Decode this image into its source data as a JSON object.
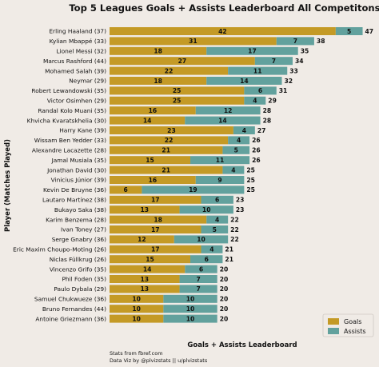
{
  "chart_data": {
    "type": "bar",
    "orientation": "horizontal",
    "stacked": true,
    "title": "Top 5 Leagues Goals + Assists Leaderboard All Competitons 22/23",
    "xlabel": "Goals + Assists Leaderboard",
    "ylabel": "Player (Matches Played)",
    "categories": [
      "Erling Haaland (37)",
      "Kylian Mbappé (33)",
      "Lionel Messi (32)",
      "Marcus Rashford (44)",
      "Mohamed Salah (39)",
      "Neymar (29)",
      "Robert Lewandowski (35)",
      "Victor Osimhen (29)",
      "Randal Kolo Muani (35)",
      "Khvicha Kvaratskhelia (30)",
      "Harry Kane (39)",
      "Wissam Ben Yedder (33)",
      "Alexandre Lacazette (28)",
      "Jamal Musiala (35)",
      "Jonathan David (30)",
      "Vinicius Júnior (39)",
      "Kevin De Bruyne (36)",
      "Lautaro Martínez (38)",
      "Bukayo Saka (38)",
      "Karim Benzema (28)",
      "Ivan Toney (27)",
      "Serge Gnabry (36)",
      "Eric Maxim Choupo-Moting (26)",
      "Niclas Füllkrug (26)",
      "Vincenzo Grifo (35)",
      "Phil Foden (35)",
      "Paulo Dybala (29)",
      "Samuel Chukwueze (36)",
      "Bruno Fernandes (44)",
      "Antoine Griezmann (36)"
    ],
    "series": [
      {
        "name": "Goals",
        "color": "#c49a26",
        "values": [
          42,
          31,
          18,
          27,
          22,
          18,
          25,
          25,
          16,
          14,
          23,
          22,
          21,
          15,
          21,
          16,
          6,
          17,
          13,
          18,
          17,
          12,
          17,
          15,
          14,
          13,
          13,
          10,
          10,
          10
        ]
      },
      {
        "name": "Assists",
        "color": "#62a19d",
        "values": [
          5,
          7,
          17,
          7,
          11,
          14,
          6,
          4,
          12,
          14,
          4,
          4,
          5,
          11,
          4,
          9,
          19,
          6,
          10,
          4,
          5,
          10,
          4,
          6,
          6,
          7,
          7,
          10,
          10,
          10
        ]
      }
    ],
    "totals": [
      47,
      38,
      35,
      34,
      33,
      32,
      31,
      29,
      28,
      28,
      27,
      26,
      26,
      26,
      25,
      25,
      25,
      23,
      23,
      22,
      22,
      22,
      21,
      21,
      20,
      20,
      20,
      20,
      20,
      20
    ],
    "xlim": [
      0,
      49
    ],
    "legend": "bottom-right",
    "grid": false
  },
  "footer": {
    "line1": "Stats from fbref.com",
    "line2": "Data Viz by @plvizstats || u/plvizstats"
  }
}
